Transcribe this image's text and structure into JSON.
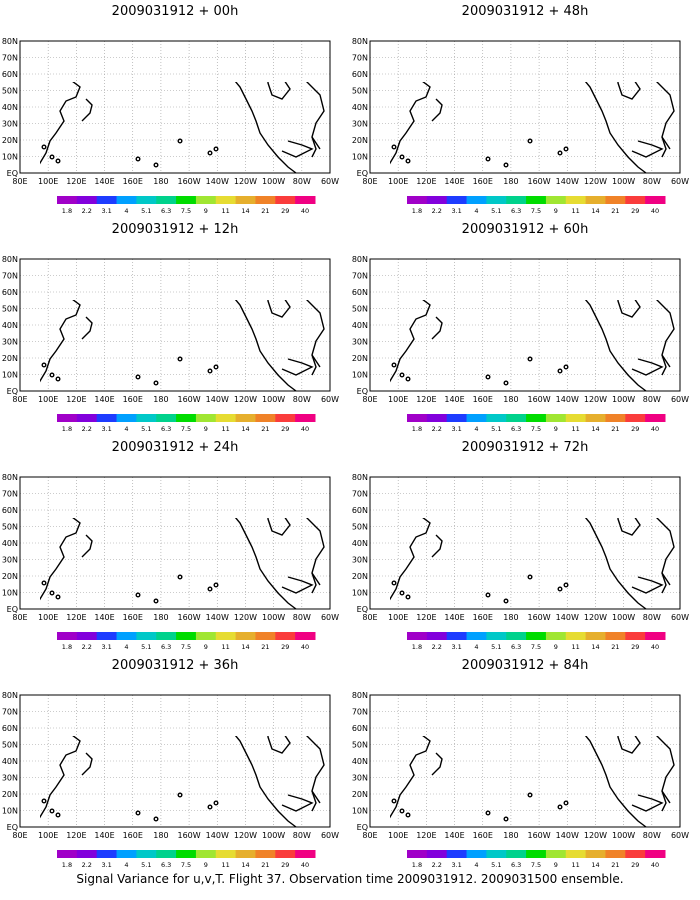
{
  "caption": "Signal Variance for u,v,T. Flight 37. Observation time 2009031912. 2009031500 ensemble.",
  "lat_labels": [
    "80N",
    "70N",
    "60N",
    "50N",
    "40N",
    "30N",
    "20N",
    "10N",
    "EQ"
  ],
  "lon_labels": [
    "80E",
    "100E",
    "120E",
    "140E",
    "160E",
    "180",
    "160W",
    "140W",
    "120W",
    "100W",
    "80W",
    "60W"
  ],
  "colorbar": {
    "levels": [
      "1.8",
      "2.2",
      "3.1",
      "4",
      "5.1",
      "6.3",
      "7.5",
      "9",
      "11",
      "14",
      "21",
      "29",
      "40"
    ],
    "colors": [
      "#a000c8",
      "#8200dc",
      "#1e3cff",
      "#00a0ff",
      "#00c8c8",
      "#00d28c",
      "#00dc00",
      "#a0e632",
      "#e6dc32",
      "#e6af2d",
      "#f08228",
      "#fa3c3c",
      "#f00082"
    ]
  },
  "panels": [
    {
      "title": "2009031912 + 00h"
    },
    {
      "title": "2009031912 + 48h"
    },
    {
      "title": "2009031912 + 12h"
    },
    {
      "title": "2009031912 + 60h"
    },
    {
      "title": "2009031912 + 24h"
    },
    {
      "title": "2009031912 + 72h"
    },
    {
      "title": "2009031912 + 36h"
    },
    {
      "title": "2009031912 + 84h"
    }
  ]
}
